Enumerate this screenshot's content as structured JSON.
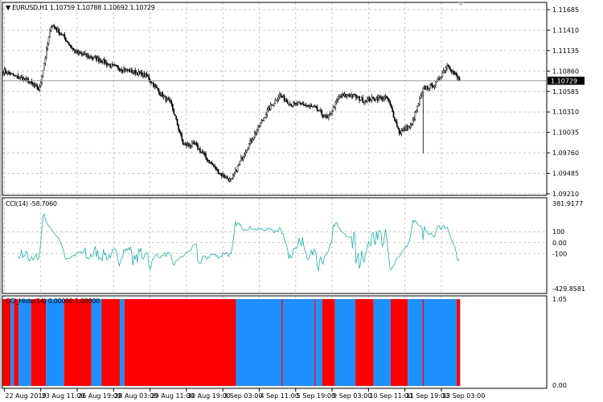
{
  "main": {
    "title": "▼ EURUSD,H1  1.10759 1.10788 1.10692 1.10729",
    "current_price": "1.10729",
    "price_ticks": [
      "1.11685",
      "1.11410",
      "1.11135",
      "1.10860",
      "1.10585",
      "1.10310",
      "1.10035",
      "1.09760",
      "1.09485",
      "1.09210"
    ]
  },
  "cci": {
    "label": "CCI(14) -58.7060",
    "max_label": "381.9177",
    "min_label": "-429.8581",
    "levels": [
      "100",
      "0.00",
      "-100"
    ],
    "line_color": "#20b2aa"
  },
  "histo": {
    "label": "CCI_Histo(14) 0.00000 1.00000",
    "top_label": "1.05",
    "bottom_label": "0.00",
    "colors": {
      "red": "#ff0000",
      "blue": "#1e90ff"
    }
  },
  "time_labels": [
    "22 Aug 2019",
    "23 Aug 11:00",
    "26 Aug 19:00",
    "28 Aug 03:00",
    "29 Aug 11:00",
    "30 Aug 19:00",
    "3 Sep 03:00",
    "4 Sep 11:00",
    "5 Sep 19:00",
    "9 Sep 03:00",
    "10 Sep 11:00",
    "11 Sep 19:00",
    "13 Sep 03:00"
  ],
  "chart_data": {
    "type": "candlestick",
    "symbol": "EURUSD",
    "timeframe": "H1",
    "ylim": [
      1.0921,
      1.11685
    ],
    "close_waypoints": [
      1.10864,
      1.10788,
      1.10734,
      1.10604,
      1.1149,
      1.11328,
      1.11112,
      1.11058,
      1.11015,
      1.10928,
      1.10885,
      1.10842,
      1.10788,
      1.10572,
      1.1041,
      1.09869,
      1.09869,
      1.09675,
      1.09491,
      1.09383,
      1.0974,
      1.10031,
      1.10323,
      1.10539,
      1.1041,
      1.1041,
      1.10356,
      1.10215,
      1.10518,
      1.10539,
      1.10464,
      1.10496,
      1.10496,
      1.10031,
      1.10129,
      1.10626,
      1.1068,
      1.1095,
      1.10729
    ],
    "histogram_runs": [
      {
        "color": "red",
        "bars": 7
      },
      {
        "color": "blue",
        "bars": 3
      },
      {
        "color": "red",
        "bars": 4
      },
      {
        "color": "blue",
        "bars": 11
      },
      {
        "color": "red",
        "bars": 13
      },
      {
        "color": "blue",
        "bars": 16
      },
      {
        "color": "red",
        "bars": 24
      },
      {
        "color": "blue",
        "bars": 9
      },
      {
        "color": "red",
        "bars": 16
      },
      {
        "color": "blue",
        "bars": 4
      },
      {
        "color": "red",
        "bars": 98
      },
      {
        "color": "blue",
        "bars": 40
      },
      {
        "color": "red",
        "bars": 1
      },
      {
        "color": "blue",
        "bars": 28
      },
      {
        "color": "red",
        "bars": 1
      },
      {
        "color": "blue",
        "bars": 6
      },
      {
        "color": "red",
        "bars": 11
      },
      {
        "color": "blue",
        "bars": 18
      },
      {
        "color": "red",
        "bars": 16
      },
      {
        "color": "blue",
        "bars": 15
      },
      {
        "color": "red",
        "bars": 15
      },
      {
        "color": "blue",
        "bars": 13
      },
      {
        "color": "red",
        "bars": 1
      },
      {
        "color": "blue",
        "bars": 29
      },
      {
        "color": "red",
        "bars": 3
      }
    ]
  }
}
